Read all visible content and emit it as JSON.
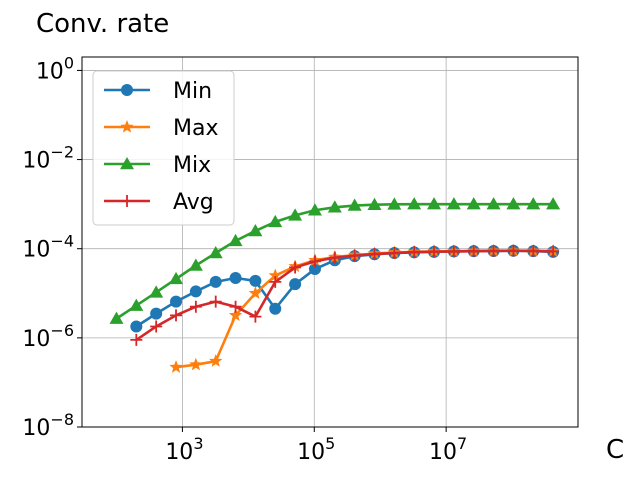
{
  "chart_data": {
    "type": "line",
    "title": "Conv. rate",
    "xlabel": "C",
    "ylabel": "",
    "xscale": "log",
    "yscale": "log",
    "xlim": [
      30,
      1000000000
    ],
    "ylim": [
      1e-08,
      2
    ],
    "grid": true,
    "legend_position": "upper-left",
    "x_ticks": [
      {
        "value": 1000,
        "base": "10",
        "exp": "3"
      },
      {
        "value": 100000,
        "base": "10",
        "exp": "5"
      },
      {
        "value": 10000000,
        "base": "10",
        "exp": "7"
      }
    ],
    "y_ticks": [
      {
        "value": 1,
        "base": "10",
        "exp": "0"
      },
      {
        "value": 0.01,
        "base": "10",
        "exp": "−2"
      },
      {
        "value": 0.0001,
        "base": "10",
        "exp": "−4"
      },
      {
        "value": 1e-06,
        "base": "10",
        "exp": "−6"
      },
      {
        "value": 1e-08,
        "base": "10",
        "exp": "−8"
      }
    ],
    "series": [
      {
        "name": "Min",
        "color": "#1f77b4",
        "marker": "circle",
        "x": [
          200,
          400,
          800,
          1600,
          3200,
          6400,
          12800,
          25600,
          51200,
          102400,
          204800,
          409600,
          819200,
          1638400,
          3276800,
          6553600,
          13107200,
          26214400,
          52428800,
          104857600,
          209715200,
          419430400
        ],
        "y": [
          1.8e-06,
          3.5e-06,
          6.5e-06,
          1.1e-05,
          1.8e-05,
          2.2e-05,
          1.9e-05,
          4.5e-06,
          1.6e-05,
          3.5e-05,
          5.5e-05,
          6.8e-05,
          7.5e-05,
          8e-05,
          8.3e-05,
          8.5e-05,
          8.7e-05,
          8.8e-05,
          8.9e-05,
          9e-05,
          8.8e-05,
          8.5e-05
        ]
      },
      {
        "name": "Max",
        "color": "#ff7f0e",
        "marker": "star",
        "x": [
          800,
          1600,
          3200,
          6400,
          12800,
          25600,
          51200,
          102400,
          204800,
          409600,
          819200,
          1638400,
          3276800,
          6553600,
          13107200,
          26214400,
          52428800,
          104857600,
          209715200,
          419430400
        ],
        "y": [
          2.2e-07,
          2.5e-07,
          3e-07,
          3.2e-06,
          1e-05,
          2.5e-05,
          4e-05,
          5.5e-05,
          6.5e-05,
          7.2e-05,
          7.8e-05,
          8.2e-05,
          8.5e-05,
          8.7e-05,
          8.8e-05,
          8.9e-05,
          9e-05,
          9e-05,
          8.9e-05,
          8.8e-05
        ]
      },
      {
        "name": "Mix",
        "color": "#2ca02c",
        "marker": "triangle",
        "x": [
          100,
          200,
          400,
          800,
          1600,
          3200,
          6400,
          12800,
          25600,
          51200,
          102400,
          204800,
          409600,
          819200,
          1638400,
          3276800,
          6553600,
          13107200,
          26214400,
          52428800,
          104857600,
          209715200,
          419430400
        ],
        "y": [
          2.7e-06,
          5.3e-06,
          1.05e-05,
          2.1e-05,
          4.2e-05,
          8e-05,
          0.00015,
          0.00025,
          0.0004,
          0.00056,
          0.00073,
          0.00085,
          0.00093,
          0.00097,
          0.00099,
          0.001,
          0.001,
          0.001,
          0.001,
          0.001,
          0.001,
          0.001,
          0.001
        ]
      },
      {
        "name": "Avg",
        "color": "#d62728",
        "marker": "plus",
        "x": [
          200,
          400,
          800,
          1600,
          3200,
          6400,
          12800,
          25600,
          51200,
          102400,
          204800,
          409600,
          819200,
          1638400,
          3276800,
          6553600,
          13107200,
          26214400,
          52428800,
          104857600,
          209715200,
          419430400
        ],
        "y": [
          9e-07,
          1.8e-06,
          3.2e-06,
          5e-06,
          6.5e-06,
          5e-06,
          3e-06,
          1.8e-05,
          3.8e-05,
          5.2e-05,
          6.3e-05,
          7e-05,
          7.6e-05,
          8e-05,
          8.4e-05,
          8.6e-05,
          8.7e-05,
          8.8e-05,
          8.9e-05,
          9e-05,
          8.9e-05,
          8.7e-05
        ]
      }
    ]
  }
}
